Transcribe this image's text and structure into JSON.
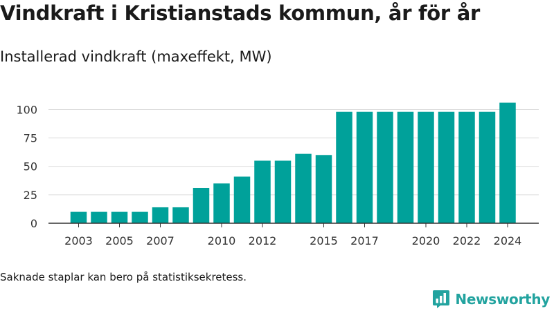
{
  "title": "Vindkraft i Kristianstads kommun, år för år",
  "subtitle": "Installerad vindkraft (maxeffekt, MW)",
  "footnote": "Saknade staplar kan bero på statistiksekretess.",
  "brand": {
    "name": "Newsworthy",
    "icon": "newsworthy-logo-icon",
    "color": "#22a39f"
  },
  "chart_data": {
    "type": "bar",
    "categories": [
      "2003",
      "2004",
      "2005",
      "2006",
      "2007",
      "2008",
      "2009",
      "2010",
      "2011",
      "2012",
      "2013",
      "2014",
      "2015",
      "2016",
      "2017",
      "2018",
      "2019",
      "2020",
      "2021",
      "2022",
      "2023",
      "2024"
    ],
    "values": [
      10,
      10,
      10,
      10,
      14,
      14,
      31,
      35,
      41,
      55,
      55,
      61,
      60,
      98,
      98,
      98,
      98,
      98,
      98,
      98,
      98,
      106
    ],
    "x_tick_labels": [
      "2003",
      "2005",
      "2007",
      "2010",
      "2012",
      "2015",
      "2017",
      "2020",
      "2022",
      "2024"
    ],
    "y_ticks": [
      0,
      25,
      50,
      75,
      100
    ],
    "ylim": [
      0,
      110
    ],
    "bar_color": "#00a19a",
    "grid": true,
    "xlabel": "",
    "ylabel": ""
  }
}
